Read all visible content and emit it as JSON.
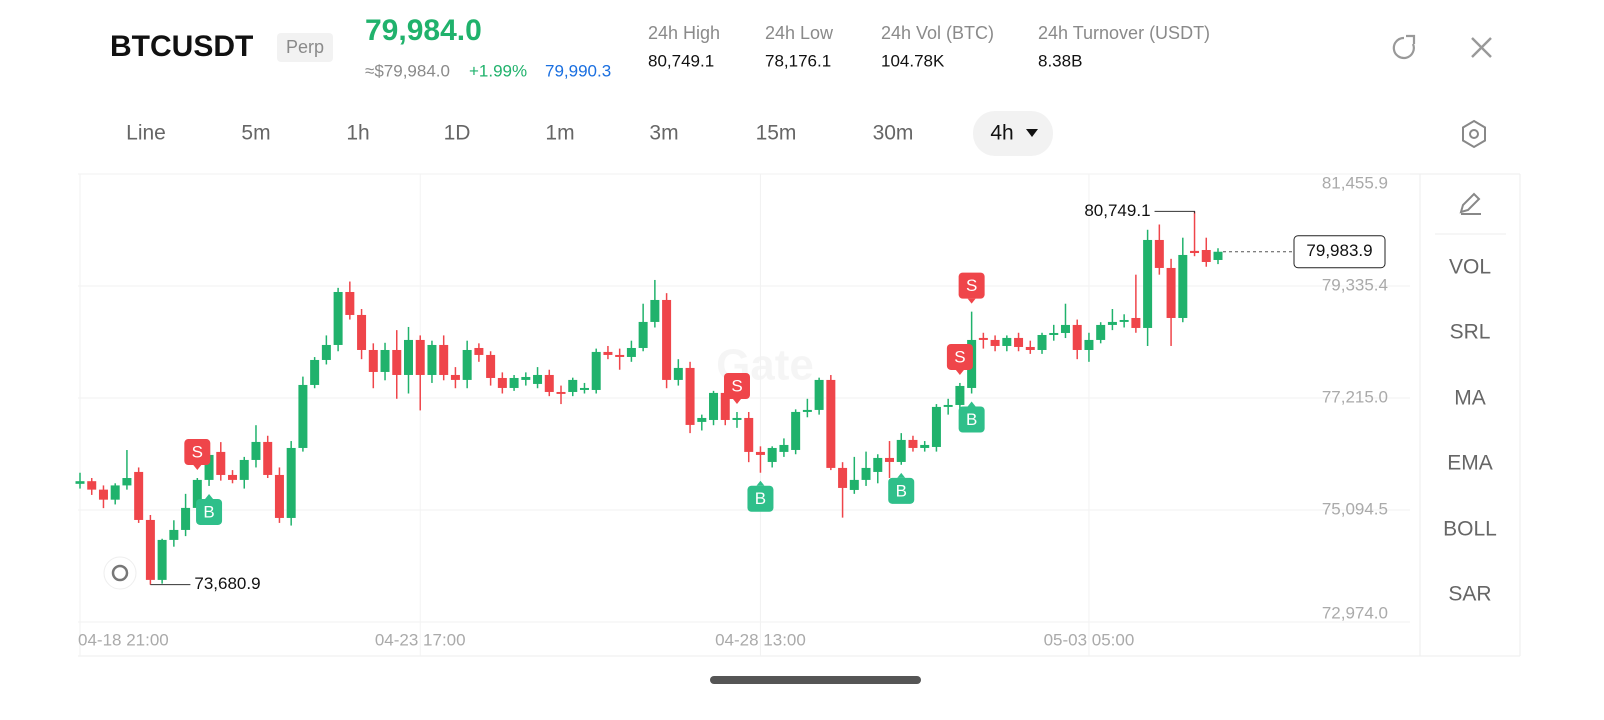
{
  "header": {
    "symbol": "BTCUSDT",
    "tag": "Perp",
    "price": "79,984.0",
    "usd_price": "≈$79,984.0",
    "change": "+1.99%",
    "mark_price": "79,990.3",
    "stats": [
      {
        "label": "24h High",
        "value": "80,749.1"
      },
      {
        "label": "24h Low",
        "value": "78,176.1"
      },
      {
        "label": "24h Vol (BTC)",
        "value": "104.78K"
      },
      {
        "label": "24h Turnover (USDT)",
        "value": "8.38B"
      }
    ]
  },
  "tabs": [
    "Line",
    "5m",
    "1h",
    "1D",
    "1m",
    "3m",
    "15m",
    "30m",
    "4h"
  ],
  "indicators": [
    "VOL",
    "SRL",
    "MA",
    "EMA",
    "BOLL",
    "SAR"
  ],
  "chart_data": {
    "type": "candlestick",
    "watermark": "Gate",
    "up_color": "#20b26c",
    "down_color": "#ef454a",
    "categories": [
      "04-18 21:00",
      null,
      null,
      null,
      null,
      null,
      null,
      null,
      null,
      null,
      null,
      null,
      null,
      null,
      null,
      null,
      null,
      null,
      null,
      null,
      null,
      null,
      null,
      null,
      null,
      null,
      null,
      null,
      null,
      "04-23 17:00",
      null,
      null,
      null,
      null,
      null,
      null,
      null,
      null,
      null,
      null,
      null,
      null,
      null,
      null,
      null,
      null,
      null,
      null,
      null,
      null,
      null,
      null,
      null,
      null,
      null,
      null,
      null,
      null,
      "04-28 13:00",
      null,
      null,
      null,
      null,
      null,
      null,
      null,
      null,
      null,
      null,
      null,
      null,
      null,
      null,
      null,
      null,
      null,
      null,
      null,
      null,
      null,
      null,
      null,
      null,
      null,
      null,
      null,
      "05-03 05:00",
      null,
      null,
      null,
      null,
      null,
      null,
      null,
      null,
      null,
      null,
      null
    ],
    "open": [
      75590,
      75640,
      75480,
      75290,
      75560,
      75815,
      74906,
      73771,
      74528,
      74717,
      75134,
      75664,
      76194,
      75758,
      75664,
      76042,
      76383,
      75758,
      74944,
      76269,
      77462,
      77935,
      78219,
      79222,
      78787,
      78124,
      77708,
      78124,
      77651,
      78314,
      77651,
      78219,
      77651,
      77557,
      78162,
      78030,
      77594,
      77405,
      77557,
      77481,
      77651,
      77329,
      77329,
      77367,
      77367,
      78087,
      78030,
      77992,
      78162,
      78655,
      79071,
      77557,
      77784,
      76762,
      76799,
      77311,
      76799,
      76837,
      76194,
      76004,
      76194,
      76231,
      76951,
      76989,
      77557,
      75891,
      75474,
      75664,
      75815,
      76080,
      76004,
      76421,
      76269,
      76288,
      77046,
      77083,
      77405,
      78352,
      78314,
      78200,
      78352,
      78181,
      78124,
      78408,
      78446,
      78598,
      78124,
      78314,
      78598,
      78655,
      78730,
      78541,
      80207,
      79677,
      78730,
      80000,
      80017,
      79828
    ],
    "high": [
      75800,
      75700,
      75560,
      75600,
      76230,
      75900,
      75000,
      74550,
      74900,
      75400,
      75700,
      76200,
      76380,
      75850,
      76100,
      76700,
      76500,
      75900,
      76400,
      77620,
      77990,
      78400,
      79300,
      79420,
      78900,
      78250,
      78260,
      78500,
      78560,
      78400,
      78300,
      78400,
      77800,
      78300,
      78250,
      78100,
      77700,
      77650,
      77700,
      77800,
      77750,
      77450,
      77600,
      77500,
      78150,
      78200,
      78150,
      78300,
      79000,
      79450,
      79200,
      77950,
      77900,
      76900,
      77350,
      77400,
      76950,
      76950,
      76300,
      76300,
      76450,
      77000,
      77200,
      77600,
      77650,
      76000,
      76100,
      76200,
      76150,
      76400,
      76550,
      76500,
      76400,
      77100,
      77200,
      77500,
      78850,
      78450,
      78400,
      78400,
      78450,
      78300,
      78450,
      78600,
      79000,
      78700,
      78450,
      78650,
      78900,
      78800,
      79550,
      80400,
      80500,
      79850,
      80250,
      80749.1,
      80250,
      80050
    ],
    "low": [
      75500,
      75380,
      75130,
      75200,
      75480,
      74850,
      73680.9,
      73700,
      74400,
      74600,
      75000,
      75550,
      75650,
      75600,
      75500,
      75900,
      75700,
      74850,
      74800,
      76200,
      77400,
      77850,
      78100,
      78700,
      77950,
      77400,
      77550,
      77200,
      77300,
      76980,
      77500,
      77550,
      77400,
      77400,
      77900,
      77450,
      77300,
      77350,
      77450,
      77400,
      77250,
      77100,
      77250,
      77300,
      77300,
      77950,
      77750,
      77900,
      78100,
      78550,
      77400,
      77450,
      76550,
      76600,
      76700,
      76700,
      76650,
      76000,
      75800,
      75900,
      76100,
      76150,
      76850,
      76900,
      75850,
      74950,
      75400,
      75550,
      75600,
      75700,
      75950,
      76200,
      76200,
      76200,
      76900,
      77000,
      77300,
      78150,
      78100,
      78100,
      78100,
      78050,
      78050,
      78300,
      78350,
      77950,
      77900,
      78250,
      78500,
      78550,
      78450,
      78200,
      79550,
      78200,
      78650,
      79900,
      79700,
      79750
    ],
    "close": [
      75640,
      75480,
      75290,
      75560,
      75700,
      74906,
      73771,
      74528,
      74717,
      75134,
      75664,
      76137,
      75758,
      75664,
      76042,
      76383,
      75758,
      74944,
      76269,
      77462,
      77935,
      78219,
      79222,
      78787,
      78124,
      77708,
      78124,
      77651,
      78314,
      77651,
      78219,
      77651,
      77557,
      78124,
      78030,
      77594,
      77405,
      77594,
      77613,
      77651,
      77329,
      77292,
      77557,
      77405,
      78087,
      78030,
      77992,
      78162,
      78655,
      79071,
      77557,
      77784,
      76705,
      76837,
      77311,
      76799,
      76837,
      76194,
      76137,
      76269,
      76326,
      76951,
      76989,
      77557,
      75891,
      75512,
      75664,
      75891,
      76080,
      76004,
      76421,
      76269,
      76326,
      77046,
      77083,
      77443,
      78314,
      78314,
      78200,
      78352,
      78181,
      78124,
      78408,
      78446,
      78598,
      78124,
      78314,
      78598,
      78655,
      78692,
      78541,
      80207,
      79677,
      78730,
      79923,
      79960,
      79790,
      79983.9
    ],
    "max_label": "80,749.1",
    "min_label": "73,680.9",
    "last_label": "79,983.9",
    "markers": [
      {
        "at": 10,
        "label": "S"
      },
      {
        "at": 11,
        "label": "B"
      },
      {
        "at": 56,
        "label": "S"
      },
      {
        "at": 58,
        "label": "B"
      },
      {
        "at": 70,
        "label": "B"
      },
      {
        "at": 75,
        "label": "S"
      },
      {
        "at": 76,
        "label": "S"
      },
      {
        "at": 76,
        "label": "B"
      }
    ],
    "ylim": [
      72974.0,
      81455.9
    ],
    "yticks": [
      {
        "value": 72974.0,
        "label": "72,974.0"
      },
      {
        "value": 75094.5,
        "label": "75,094.5"
      },
      {
        "value": 77215.0,
        "label": "77,215.0"
      },
      {
        "value": 79335.4,
        "label": "79,335.4"
      },
      {
        "value": 81455.9,
        "label": "81,455.9"
      }
    ],
    "grid": true
  }
}
